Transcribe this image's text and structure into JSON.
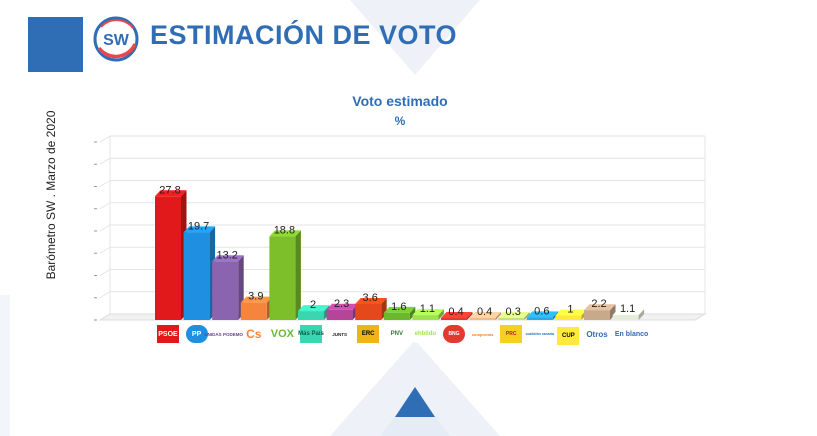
{
  "header": {
    "title": "ESTIMACIÓN DE VOTO",
    "logo_text": "SW"
  },
  "side_label": "Barómetro SW . Marzo de 2020",
  "chart_data": {
    "type": "bar",
    "title": "Voto estimado",
    "subtitle": "%",
    "xlabel": "",
    "ylabel": "",
    "ylim": [
      0,
      40
    ],
    "grid": true,
    "categories": [
      "PSOE",
      "PP",
      "UNIDAS PODEMOS",
      "Cs",
      "VOX",
      "Más País",
      "JUNTS PER CATALUNYA",
      "ERC",
      "EAJ-PNV",
      "EH Bildu",
      "BNG",
      "Compromís",
      "PRC",
      "Coalición Canaria",
      "CUP",
      "Otros",
      "En blanco"
    ],
    "values": [
      27.8,
      19.7,
      13.2,
      3.9,
      18.8,
      2,
      2.3,
      3.6,
      1.6,
      1.1,
      0.4,
      0.4,
      0.3,
      0.6,
      1,
      2.2,
      1.1
    ],
    "data_labels": [
      "27.8",
      "19.7",
      "13.2",
      "3.9",
      "18.8",
      "2",
      "2.3",
      "3.6",
      "1.6",
      "1.1",
      "0.4",
      "0.4",
      "0.3",
      "0.6",
      "1",
      "2.2",
      "1.1"
    ],
    "colors": [
      "#e2191b",
      "#1e8fe1",
      "#8b64b0",
      "#f5843c",
      "#7cbf2a",
      "#3ad6b2",
      "#b54598",
      "#e5481a",
      "#6bb82e",
      "#9ee34f",
      "#e23a2e",
      "#f5b98e",
      "#c8e07a",
      "#29a7e6",
      "#ffe93a",
      "#c7a98c",
      "#e3edd9"
    ],
    "legend_labels": [
      "PSOE",
      "PP",
      "UNIDAS PODEMOS",
      "Cs",
      "VOX",
      "Más País",
      "JUNTS",
      "ERC",
      "PNV",
      "ehbildu",
      "BNG",
      "compromís",
      "PRC",
      "coalición canaria",
      "CUP",
      "Otros",
      "En blanco"
    ]
  }
}
